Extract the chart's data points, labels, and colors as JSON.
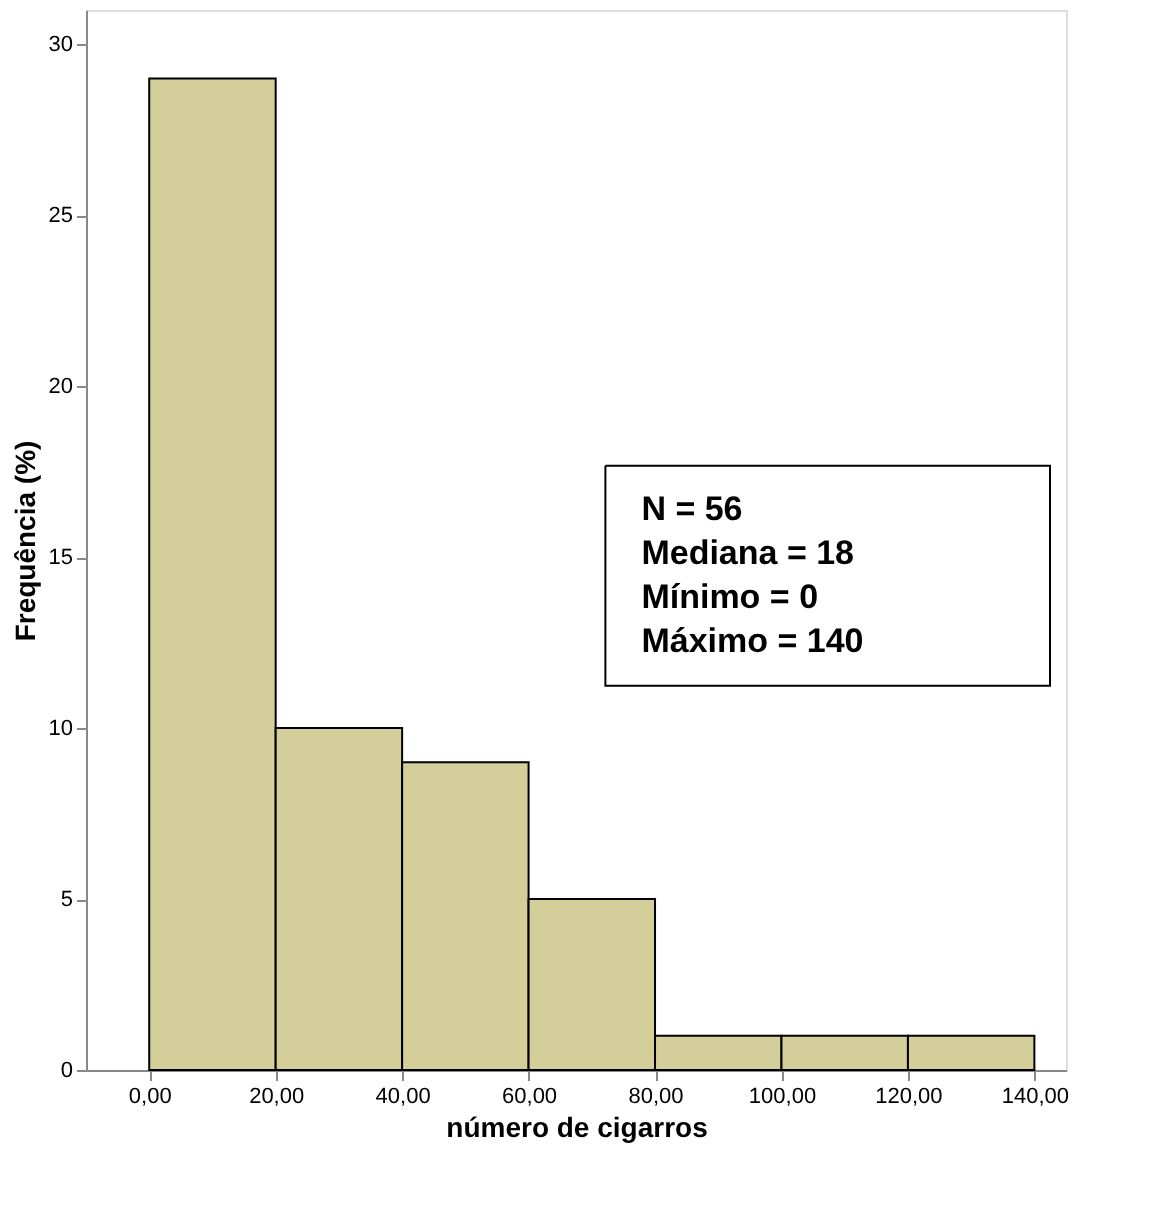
{
  "chart_data": {
    "type": "histogram",
    "xlabel": "número de cigarros",
    "ylabel": "Frequência (%)",
    "bins": [
      0,
      20,
      40,
      60,
      80,
      100,
      120,
      140
    ],
    "values": [
      29,
      10,
      9,
      5,
      1,
      1,
      1
    ],
    "color": "#d3ce9a",
    "xlim": [
      -10,
      145
    ],
    "xticks": [
      {
        "value": 0,
        "label": "0,00"
      },
      {
        "value": 20,
        "label": "20,00"
      },
      {
        "value": 40,
        "label": "40,00"
      },
      {
        "value": 60,
        "label": "60,00"
      },
      {
        "value": 80,
        "label": "80,00"
      },
      {
        "value": 100,
        "label": "100,00"
      },
      {
        "value": 120,
        "label": "120,00"
      },
      {
        "value": 140,
        "label": "140,00"
      }
    ],
    "ylim": [
      0,
      31
    ],
    "yticks": [
      0,
      5,
      10,
      15,
      20,
      25,
      30
    ],
    "grid": false,
    "annotations": [
      "N = 56",
      "Mediana = 18",
      "Mínimo = 0",
      "Máximo = 140"
    ]
  }
}
